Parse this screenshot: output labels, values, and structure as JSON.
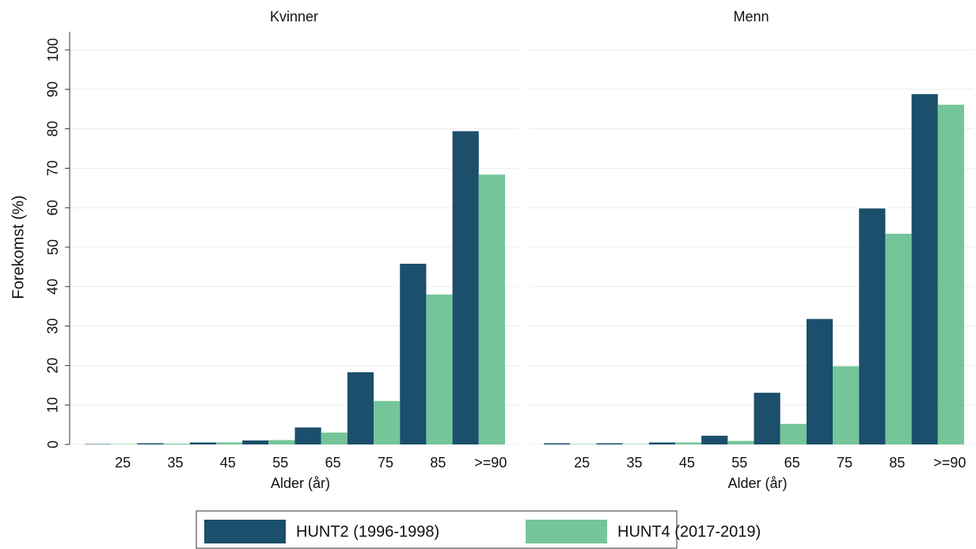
{
  "chart_data": [
    {
      "type": "bar",
      "title": "Kvinner",
      "xlabel": "Alder (år)",
      "ylabel": "Forekomst (%)",
      "categories": [
        "25",
        "35",
        "45",
        "55",
        "65",
        "75",
        "85",
        ">=90"
      ],
      "series": [
        {
          "name": "HUNT2 (1996-1998)",
          "color": "#1b4f6b",
          "values": [
            0.1,
            0.3,
            0.5,
            1.0,
            4.3,
            18.3,
            45.8,
            79.4
          ]
        },
        {
          "name": "HUNT4 (2017-2019)",
          "color": "#75c59a",
          "values": [
            0.1,
            0.2,
            0.5,
            1.1,
            3.0,
            11.0,
            38.0,
            68.4
          ]
        }
      ],
      "ylim": [
        0,
        100
      ],
      "yticks": [
        0,
        10,
        20,
        30,
        40,
        50,
        60,
        70,
        80,
        90,
        100
      ],
      "grid": true
    },
    {
      "type": "bar",
      "title": "Menn",
      "xlabel": "Alder (år)",
      "categories": [
        "25",
        "35",
        "45",
        "55",
        "65",
        "75",
        "85",
        ">=90"
      ],
      "series": [
        {
          "color": "#1b4f6b",
          "values": [
            0.3,
            0.3,
            0.5,
            2.2,
            13.1,
            31.8,
            59.8,
            88.8
          ]
        },
        {
          "color": "#75c59a",
          "values": [
            0.1,
            0.1,
            0.5,
            0.9,
            5.2,
            19.8,
            53.4,
            86.1
          ]
        }
      ],
      "ylim": [
        0,
        100
      ],
      "yticks": [
        0,
        10,
        20,
        30,
        40,
        50,
        60,
        70,
        80,
        90,
        100
      ],
      "grid": true
    }
  ]
}
